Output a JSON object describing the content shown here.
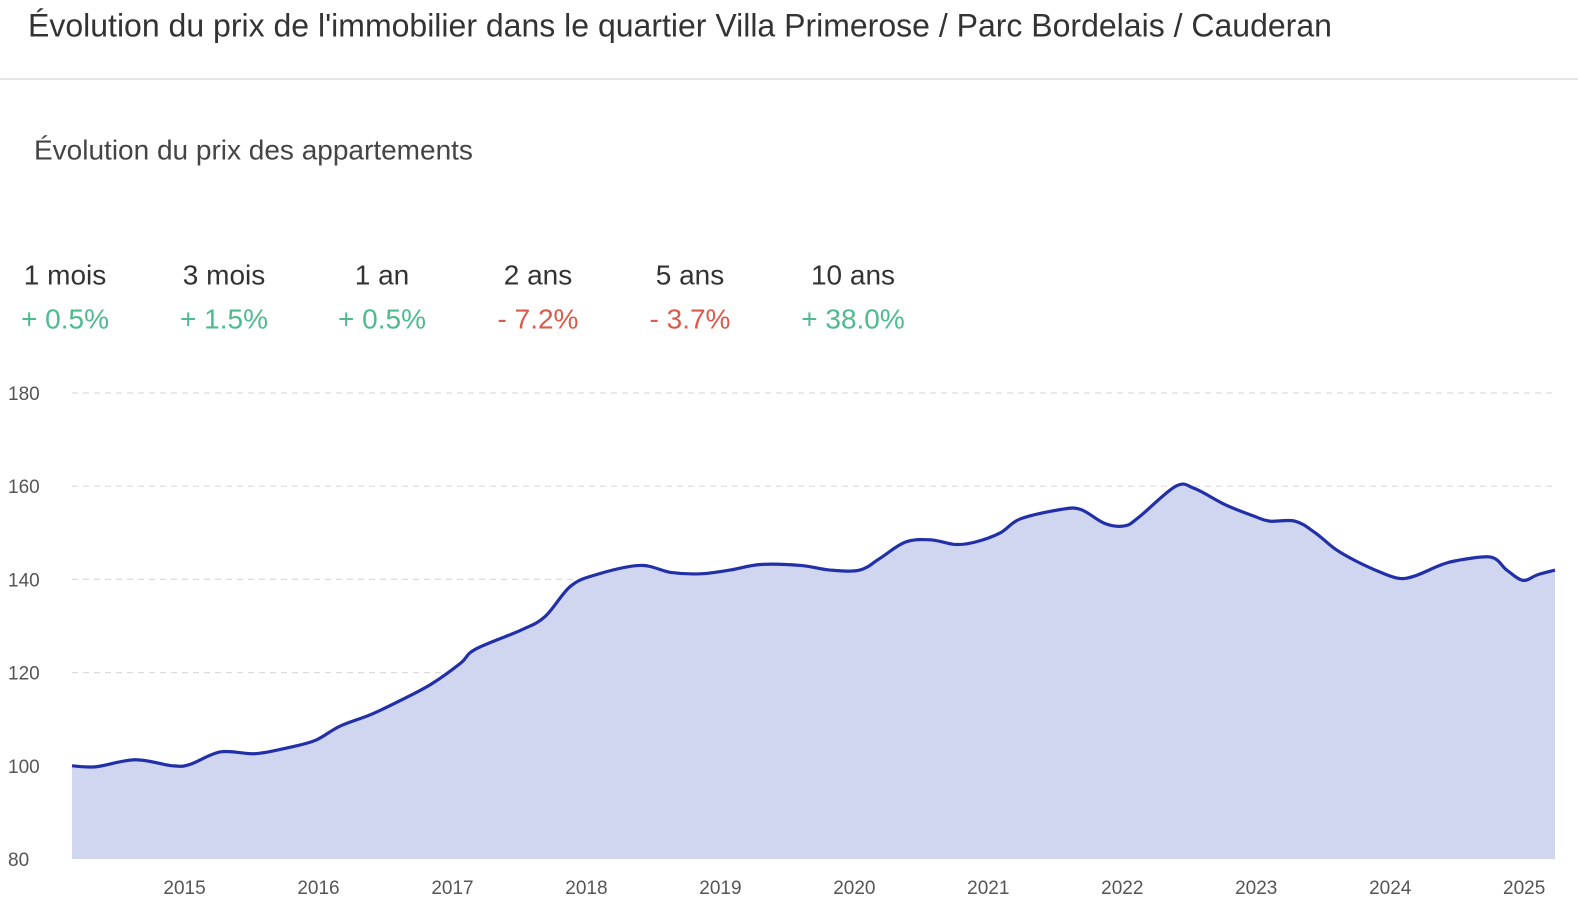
{
  "header": {
    "title": "Évolution du prix de l'immobilier dans le quartier Villa Primerose / Parc Bordelais / Cauderan"
  },
  "subtitle": "Évolution du prix des appartements",
  "periods": [
    {
      "label": "1 mois",
      "change": "+ 0.5%",
      "color": "#4dbb8e"
    },
    {
      "label": "3 mois",
      "change": "+ 1.5%",
      "color": "#4dbb8e"
    },
    {
      "label": "1 an",
      "change": "+ 0.5%",
      "color": "#4dbb8e"
    },
    {
      "label": "2 ans",
      "change": "- 7.2%",
      "color": "#dd5a4a"
    },
    {
      "label": "5 ans",
      "change": "- 3.7%",
      "color": "#dd5a4a"
    },
    {
      "label": "10 ans",
      "change": "+ 38.0%",
      "color": "#4dbb8e"
    }
  ],
  "chart_data": {
    "type": "area",
    "x": [
      2014.16,
      2014.34,
      2014.63,
      2014.91,
      2015.04,
      2015.27,
      2015.53,
      2015.79,
      2015.98,
      2016.16,
      2016.39,
      2016.61,
      2016.84,
      2017.06,
      2017.17,
      2017.51,
      2017.69,
      2017.88,
      2018.07,
      2018.4,
      2018.63,
      2018.85,
      2019.07,
      2019.3,
      2019.6,
      2019.82,
      2020.04,
      2020.19,
      2020.38,
      2020.57,
      2020.75,
      2020.9,
      2021.09,
      2021.24,
      2021.54,
      2021.69,
      2021.87,
      2022.02,
      2022.13,
      2022.4,
      2022.54,
      2022.77,
      2022.99,
      2023.1,
      2023.29,
      2023.44,
      2023.59,
      2023.74,
      2023.93,
      2024.07,
      2024.19,
      2024.37,
      2024.49,
      2024.75,
      2024.87,
      2024.99,
      2025.1,
      2025.23
    ],
    "values": [
      100,
      99.8,
      101.3,
      100,
      100.3,
      103,
      102.6,
      104,
      105.5,
      108.5,
      111,
      114,
      117.5,
      122,
      125,
      129.1,
      132,
      138.5,
      141,
      143,
      141.5,
      141.2,
      142,
      143.2,
      143,
      142,
      142,
      144.5,
      148,
      148.5,
      147.5,
      148,
      150,
      153,
      155,
      155,
      152,
      151.5,
      153.5,
      160,
      159.5,
      156,
      153.5,
      152.5,
      152.5,
      150,
      146.5,
      144,
      141.5,
      140.2,
      140.8,
      143,
      144,
      144.8,
      142,
      139.8,
      141,
      142
    ],
    "color": "#2230a8",
    "fill": "#d0d5f0",
    "xlim": [
      2014.16,
      2025.23
    ],
    "xticks": [
      2015,
      2016,
      2017,
      2018,
      2019,
      2020,
      2021,
      2022,
      2023,
      2024,
      2025
    ],
    "ylim": [
      80,
      180
    ],
    "yticks": [
      80,
      100,
      120,
      140,
      160,
      180
    ],
    "grid": true
  }
}
